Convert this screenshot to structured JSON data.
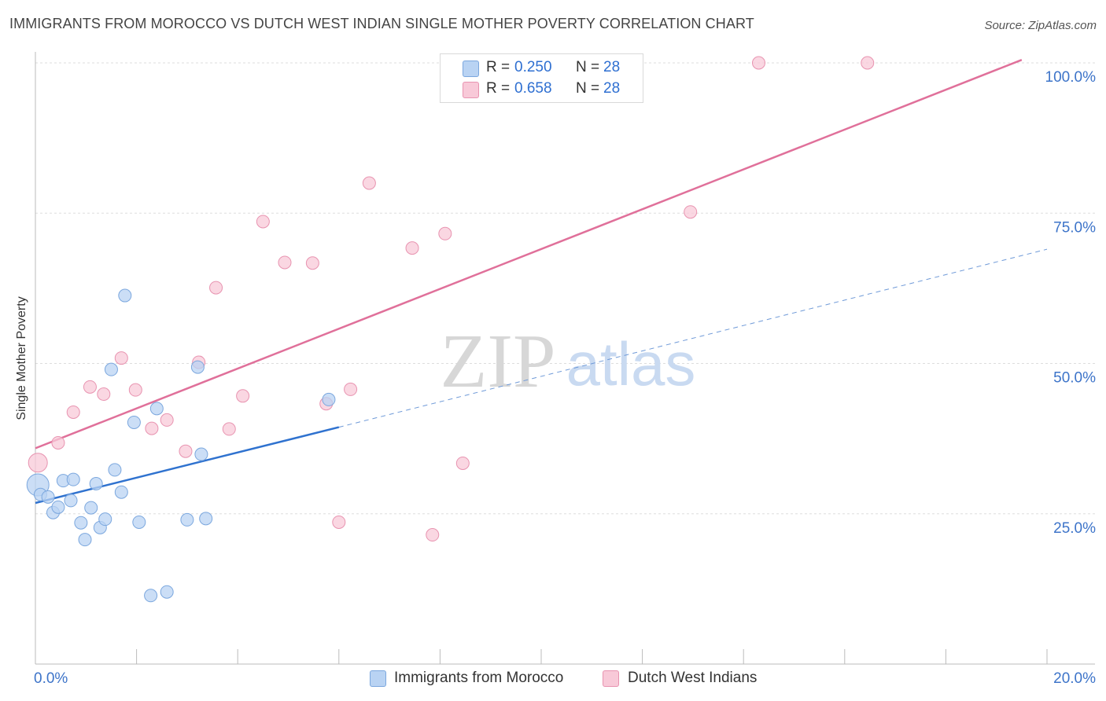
{
  "header": {
    "title": "IMMIGRANTS FROM MOROCCO VS DUTCH WEST INDIAN SINGLE MOTHER POVERTY CORRELATION CHART",
    "source": "Source: ZipAtlas.com"
  },
  "watermark": {
    "zip": "ZIP",
    "atlas": "atlas"
  },
  "legend": {
    "r_label": "R =",
    "n_label": "N =",
    "series": [
      {
        "r": "0.250",
        "n": "28"
      },
      {
        "r": "0.658",
        "n": "28"
      }
    ]
  },
  "colors": {
    "blue_fill": "#b9d3f3",
    "blue_stroke": "#7ba7de",
    "blue_line": "#2f72cf",
    "pink_fill": "#f8c9d8",
    "pink_stroke": "#e893b0",
    "pink_line": "#e0709a",
    "tick_label": "#3d74c9",
    "grid": "#dddddd"
  },
  "chart_data": {
    "type": "scatter",
    "title": "IMMIGRANTS FROM MOROCCO VS DUTCH WEST INDIAN SINGLE MOTHER POVERTY CORRELATION CHART",
    "xlabel": "",
    "ylabel": "Single Mother Poverty",
    "xlim": [
      0,
      20
    ],
    "ylim": [
      2,
      103
    ],
    "x_tick_labels": [
      {
        "value": 0,
        "label": "0.0%"
      },
      {
        "value": 20,
        "label": "20.0%"
      }
    ],
    "y_tick_labels": [
      {
        "value": 25,
        "label": "25.0%"
      },
      {
        "value": 50,
        "label": "50.0%"
      },
      {
        "value": 75,
        "label": "75.0%"
      },
      {
        "value": 100,
        "label": "100.0%"
      }
    ],
    "series": [
      {
        "name": "Immigrants from Morocco",
        "color": "blue",
        "r": 0.25,
        "n": 28,
        "points": [
          [
            0.05,
            29.8,
            14
          ],
          [
            0.1,
            28.2,
            8
          ],
          [
            0.25,
            27.8,
            8
          ],
          [
            0.35,
            25.2,
            8
          ],
          [
            0.45,
            26.1,
            8
          ],
          [
            0.55,
            30.5,
            8
          ],
          [
            0.7,
            27.2,
            8
          ],
          [
            0.75,
            30.7,
            8
          ],
          [
            0.9,
            23.5,
            8
          ],
          [
            0.98,
            20.7,
            8
          ],
          [
            1.1,
            26.0,
            8
          ],
          [
            1.2,
            30.0,
            8
          ],
          [
            1.28,
            22.7,
            8
          ],
          [
            1.38,
            24.1,
            8
          ],
          [
            1.5,
            49.0,
            8
          ],
          [
            1.57,
            32.3,
            8
          ],
          [
            1.7,
            28.6,
            8
          ],
          [
            1.77,
            61.3,
            8
          ],
          [
            1.95,
            40.2,
            8
          ],
          [
            2.05,
            23.6,
            8
          ],
          [
            2.28,
            11.4,
            8
          ],
          [
            2.4,
            42.5,
            8
          ],
          [
            2.6,
            12.0,
            8
          ],
          [
            3.0,
            24.0,
            8
          ],
          [
            3.21,
            49.4,
            8
          ],
          [
            3.28,
            34.9,
            8
          ],
          [
            3.37,
            24.2,
            8
          ],
          [
            5.8,
            44.0,
            8
          ]
        ],
        "trend_solid": [
          [
            0,
            26.8
          ],
          [
            6.0,
            39.4
          ]
        ],
        "trend_dashed": [
          [
            6.0,
            39.4
          ],
          [
            20.0,
            69.0
          ]
        ]
      },
      {
        "name": "Dutch West Indians",
        "color": "pink",
        "r": 0.658,
        "n": 28,
        "points": [
          [
            0.05,
            33.5,
            12
          ],
          [
            0.45,
            36.8,
            8
          ],
          [
            0.75,
            41.9,
            8
          ],
          [
            1.08,
            46.1,
            8
          ],
          [
            1.35,
            44.9,
            8
          ],
          [
            1.7,
            50.9,
            8
          ],
          [
            1.98,
            45.6,
            8
          ],
          [
            2.3,
            39.2,
            8
          ],
          [
            2.6,
            40.6,
            8
          ],
          [
            2.97,
            35.4,
            8
          ],
          [
            3.23,
            50.2,
            8
          ],
          [
            3.57,
            62.6,
            8
          ],
          [
            3.83,
            39.1,
            8
          ],
          [
            4.1,
            44.6,
            8
          ],
          [
            4.5,
            73.6,
            8
          ],
          [
            4.93,
            66.8,
            8
          ],
          [
            5.48,
            66.7,
            8
          ],
          [
            5.75,
            43.3,
            8
          ],
          [
            6.0,
            23.6,
            8
          ],
          [
            6.23,
            45.7,
            8
          ],
          [
            6.6,
            80.0,
            8
          ],
          [
            7.45,
            69.2,
            8
          ],
          [
            7.85,
            21.5,
            8
          ],
          [
            8.1,
            71.6,
            8
          ],
          [
            8.45,
            33.4,
            8
          ],
          [
            12.95,
            75.2,
            8
          ],
          [
            14.3,
            100.0,
            8
          ],
          [
            16.45,
            100.0,
            8
          ]
        ],
        "trend_solid": [
          [
            0,
            35.9
          ],
          [
            19.5,
            100.5
          ]
        ]
      }
    ]
  }
}
